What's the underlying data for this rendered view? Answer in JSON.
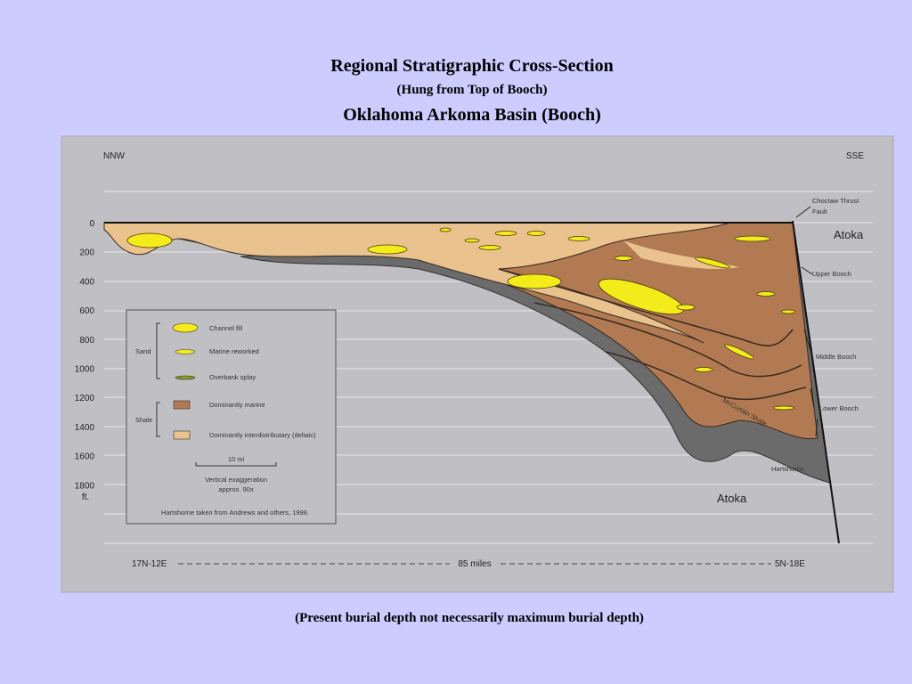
{
  "header": {
    "title": "Regional Stratigraphic Cross-Section",
    "subtitle": "(Hung from Top of Booch)",
    "title2": "Oklahoma Arkoma Basin (Booch)"
  },
  "diagram": {
    "left_direction": "NNW",
    "right_direction": "SSE",
    "depth_labels": [
      "0",
      "200",
      "400",
      "600",
      "800",
      "1000",
      "1200",
      "1400",
      "1600",
      "1800"
    ],
    "depth_unit": "ft.",
    "fault_label": [
      "Choctaw Thrust",
      "Fault"
    ],
    "unit_labels": {
      "atoka_top": "Atoka",
      "upper_booch": "Upper Booch",
      "middle_booch": "Middle Booch",
      "lower_booch": "Lower Booch",
      "mccurtain": "McCurtain Shale",
      "hartshorne": "Hartshorne",
      "atoka_bottom": "Atoka"
    },
    "section_line": {
      "left": "17N-12E",
      "distance": "85 miles",
      "right": "5N-18E"
    }
  },
  "legend": {
    "sand": "Sand",
    "shale": "Shale",
    "channel_fill": "Channel fill",
    "marine_reworked": "Marine reworked",
    "overbank_splay": "Overbank splay",
    "dominantly_marine": "Dominantly marine",
    "interdistributary": "Dominantly interdistributary (deltaic)",
    "scale": "10 mi",
    "exaggeration": [
      "Vertical exaggeration",
      "approx. 90x"
    ],
    "source": "Hartshorne taken from Andrews and others, 1998."
  },
  "caption": "(Present burial depth not necessarily maximum burial depth)"
}
